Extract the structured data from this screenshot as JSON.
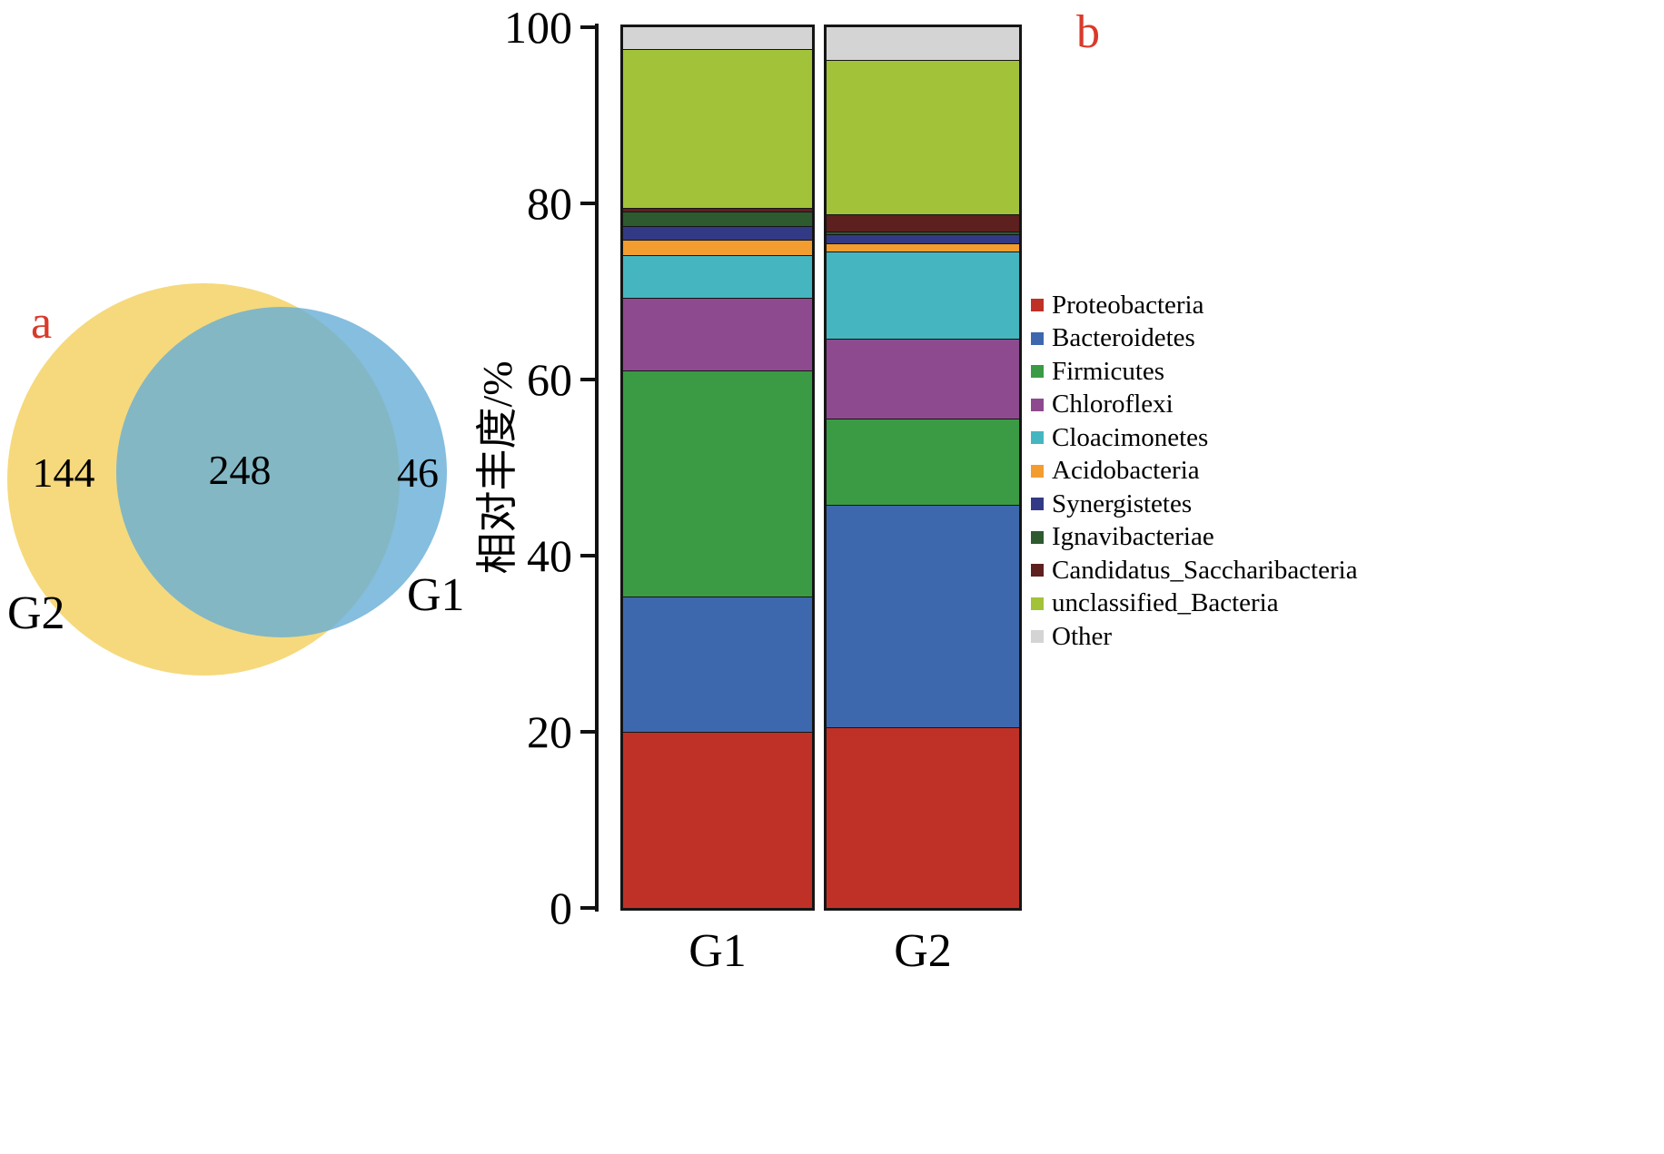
{
  "figure": {
    "accent_red": "#d93a2a",
    "axis_color": "#111111"
  },
  "panel_a": {
    "label": "a",
    "venn": {
      "left_circle_label": "G2",
      "right_circle_label": "G1",
      "left_only_count": "144",
      "overlap_count": "248",
      "right_only_count": "46",
      "left_color": "#f6d97c",
      "right_color": "#67aed6",
      "right_opacity": 0.8
    }
  },
  "panel_b": {
    "label": "b"
  },
  "chart_data": {
    "type": "bar",
    "stacked": true,
    "title": "",
    "xlabel": "",
    "ylabel": "相对丰度/%",
    "ylim": [
      0,
      100
    ],
    "yticks": [
      0,
      20,
      40,
      60,
      80,
      100
    ],
    "grid": false,
    "legend_position": "right",
    "categories": [
      "G1",
      "G2"
    ],
    "series": [
      {
        "name": "Proteobacteria",
        "color": "#bf3127",
        "values": [
          20.0,
          20.5
        ]
      },
      {
        "name": "Bacteroidetes",
        "color": "#3e68ae",
        "values": [
          15.4,
          25.3
        ]
      },
      {
        "name": "Firmicutes",
        "color": "#3a9b44",
        "values": [
          25.6,
          9.8
        ]
      },
      {
        "name": "Chloroflexi",
        "color": "#8e4a8e",
        "values": [
          8.3,
          9.0
        ]
      },
      {
        "name": "Cloacimonetes",
        "color": "#45b6c0",
        "values": [
          4.8,
          9.9
        ]
      },
      {
        "name": "Acidobacteria",
        "color": "#f39c2f",
        "values": [
          1.8,
          1.0
        ]
      },
      {
        "name": "Synergistetes",
        "color": "#333a85",
        "values": [
          1.5,
          1.0
        ]
      },
      {
        "name": "Ignavibacteriae",
        "color": "#2e5a30",
        "values": [
          1.7,
          0.3
        ]
      },
      {
        "name": "Candidatus_Saccharibacteria",
        "color": "#5e1f1f",
        "values": [
          0.4,
          2.0
        ]
      },
      {
        "name": "unclassified_Bacteria",
        "color": "#a2c23a",
        "values": [
          18.0,
          17.5
        ]
      },
      {
        "name": "Other",
        "color": "#d4d4d4",
        "values": [
          2.5,
          3.7
        ]
      }
    ]
  }
}
